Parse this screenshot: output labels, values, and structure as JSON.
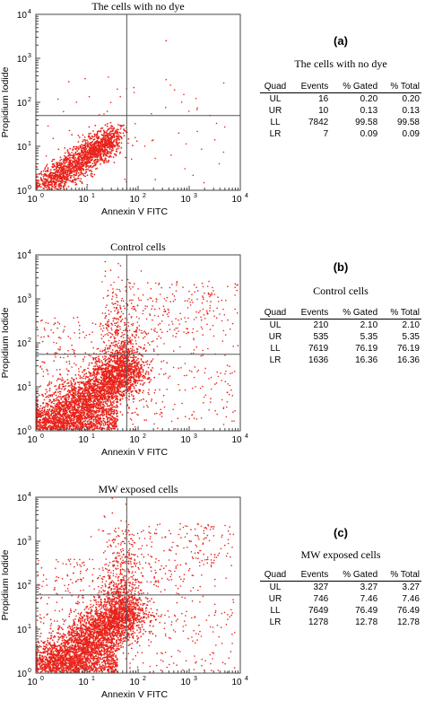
{
  "chart_data": [
    {
      "type": "scatter",
      "panel_letter": "(a)",
      "title": "The cells with no dye",
      "xlabel": "Annexin V FITC",
      "ylabel": "Propidium Iodide",
      "xscale": "log",
      "yscale": "log",
      "xlim": [
        1,
        10000
      ],
      "ylim": [
        1,
        10000
      ],
      "x_ticks": [
        "10",
        "10",
        "10",
        "10",
        "10"
      ],
      "tick_exponents": [
        "0",
        "1",
        "2",
        "3",
        "4"
      ],
      "quadrant_gate": {
        "x": 60,
        "y": 50
      },
      "marker_color": "#e8231a",
      "stats_title": "The cells with no dye",
      "stats_headers": [
        "Quad",
        "Events",
        "% Gated",
        "% Total"
      ],
      "stats_rows": [
        [
          "UL",
          "16",
          "0.20",
          "0.20"
        ],
        [
          "UR",
          "10",
          "0.13",
          "0.13"
        ],
        [
          "LL",
          "7842",
          "99.58",
          "99.58"
        ],
        [
          "LR",
          "7",
          "0.09",
          "0.09"
        ]
      ]
    },
    {
      "type": "scatter",
      "panel_letter": "(b)",
      "title": "Control cells",
      "xlabel": "Annexin V FITC",
      "ylabel": "Propidium Iodide",
      "xscale": "log",
      "yscale": "log",
      "xlim": [
        1,
        10000
      ],
      "ylim": [
        1,
        10000
      ],
      "x_ticks": [
        "10",
        "10",
        "10",
        "10",
        "10"
      ],
      "tick_exponents": [
        "0",
        "1",
        "2",
        "3",
        "4"
      ],
      "quadrant_gate": {
        "x": 60,
        "y": 55
      },
      "marker_color": "#e8231a",
      "stats_title": "Control cells",
      "stats_headers": [
        "Quad",
        "Events",
        "% Gated",
        "% Total"
      ],
      "stats_rows": [
        [
          "UL",
          "210",
          "2.10",
          "2.10"
        ],
        [
          "UR",
          "535",
          "5.35",
          "5.35"
        ],
        [
          "LL",
          "7619",
          "76.19",
          "76.19"
        ],
        [
          "LR",
          "1636",
          "16.36",
          "16.36"
        ]
      ]
    },
    {
      "type": "scatter",
      "panel_letter": "(c)",
      "title": "MW exposed cells",
      "xlabel": "Annexin V FITC",
      "ylabel": "Propidium Iodide",
      "xscale": "log",
      "yscale": "log",
      "xlim": [
        1,
        10000
      ],
      "ylim": [
        1,
        10000
      ],
      "x_ticks": [
        "10",
        "10",
        "10",
        "10",
        "10"
      ],
      "tick_exponents": [
        "0",
        "1",
        "2",
        "3",
        "4"
      ],
      "quadrant_gate": {
        "x": 60,
        "y": 60
      },
      "marker_color": "#e8231a",
      "stats_title": "MW exposed cells",
      "stats_headers": [
        "Quad",
        "Events",
        "% Gated",
        "% Total"
      ],
      "stats_rows": [
        [
          "UL",
          "327",
          "3.27",
          "3.27"
        ],
        [
          "UR",
          "746",
          "7.46",
          "7.46"
        ],
        [
          "LL",
          "7649",
          "76.49",
          "76.49"
        ],
        [
          "LR",
          "1278",
          "12.78",
          "12.78"
        ]
      ]
    }
  ]
}
